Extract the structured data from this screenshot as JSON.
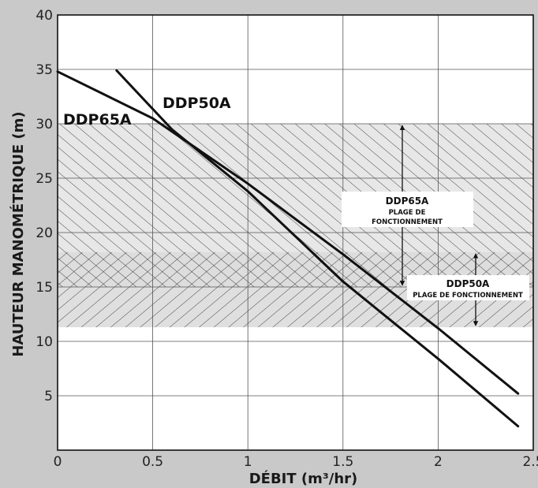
{
  "chart_data": {
    "type": "line",
    "xlabel": "DÉBIT (m³/hr)",
    "ylabel": "HAUTEUR MANOMÉTRIQUE (m)",
    "xlim": [
      0,
      2.5
    ],
    "ylim": [
      0,
      40
    ],
    "x_ticks": [
      "0",
      "0.5",
      "1",
      "1.5",
      "2",
      "2.5"
    ],
    "y_ticks": [
      "5",
      "10",
      "15",
      "20",
      "25",
      "30",
      "35",
      "40"
    ],
    "grid": true,
    "series": [
      {
        "name": "DDP65A",
        "x": [
          0,
          0.5,
          1.0,
          1.5,
          2.0,
          2.42
        ],
        "y": [
          34.8,
          30.5,
          24.5,
          18.0,
          11.2,
          5.2
        ]
      },
      {
        "name": "DDP50A",
        "x": [
          0.31,
          0.6,
          1.0,
          1.5,
          2.0,
          2.42
        ],
        "y": [
          34.9,
          29.5,
          23.8,
          15.5,
          8.4,
          2.2
        ]
      }
    ],
    "operating_ranges": [
      {
        "label": "DDP65A",
        "label_sub": "PLAGE DE",
        "label_sub2": "FONCTIONNEMENT",
        "y_range": [
          15,
          30
        ]
      },
      {
        "label": "DDP50A",
        "label_sub": "PLAGE DE FONCTIONNEMENT",
        "y_range": [
          11.3,
          18.2
        ]
      }
    ]
  }
}
